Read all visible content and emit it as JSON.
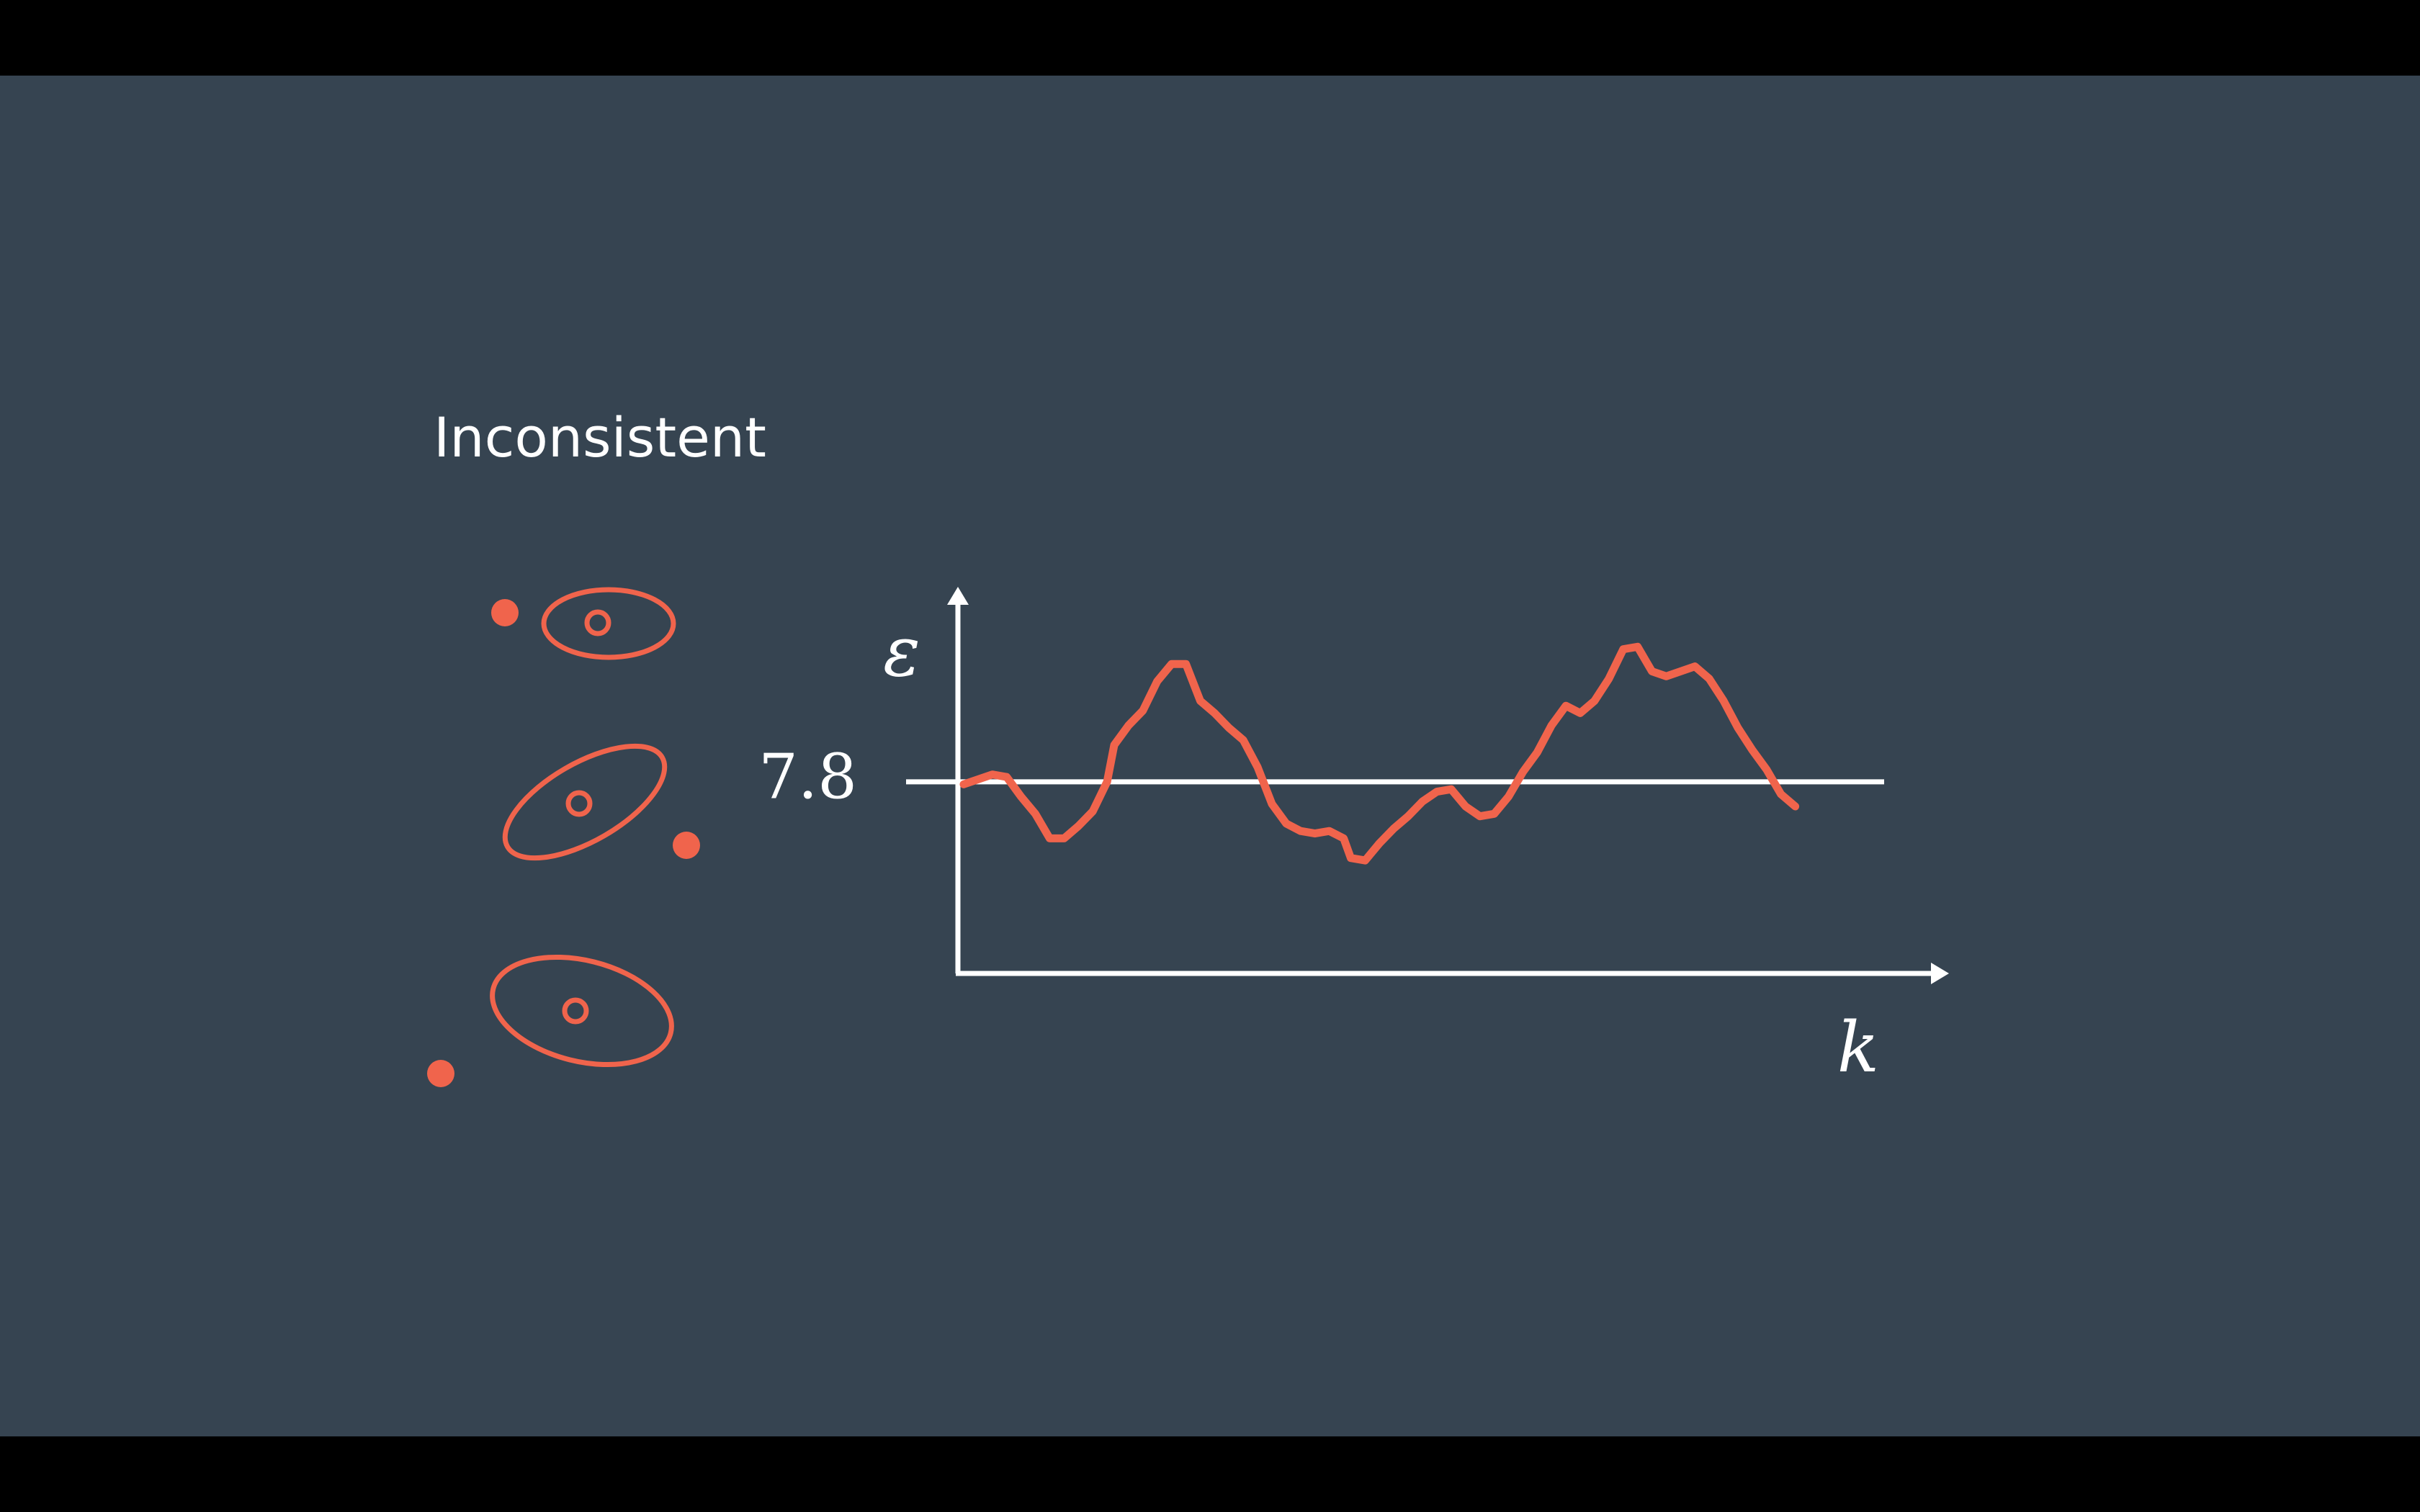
{
  "slide": {
    "title": "Inconsistent",
    "colors": {
      "background": "#364451",
      "accent": "#f0644c",
      "axis": "#ffffff",
      "letterbox": "#000000"
    }
  },
  "legend_glyphs": [
    {
      "name": "measurement-inside-ellipse"
    },
    {
      "name": "measurement-outside-ellipse-tilted"
    },
    {
      "name": "measurement-far-outside-ellipse"
    }
  ],
  "chart_data": {
    "type": "line",
    "ylabel": "ε",
    "xlabel": "k",
    "threshold": {
      "value": 7.8,
      "label": "7.8"
    },
    "ylim": [
      0,
      18
    ],
    "xlim": [
      0,
      130
    ],
    "series": [
      {
        "values": [
          [
            0,
            7.7
          ],
          [
            4,
            8.1
          ],
          [
            6,
            8.0
          ],
          [
            8,
            7.2
          ],
          [
            10,
            6.5
          ],
          [
            12,
            5.5
          ],
          [
            14,
            5.5
          ],
          [
            16,
            6.0
          ],
          [
            18,
            6.6
          ],
          [
            20,
            7.8
          ],
          [
            21,
            9.3
          ],
          [
            23,
            10.1
          ],
          [
            25,
            10.7
          ],
          [
            27,
            11.9
          ],
          [
            29,
            12.6
          ],
          [
            31,
            12.6
          ],
          [
            33,
            11.1
          ],
          [
            35,
            10.6
          ],
          [
            37,
            10.0
          ],
          [
            39,
            9.5
          ],
          [
            41,
            8.4
          ],
          [
            43,
            6.9
          ],
          [
            45,
            6.1
          ],
          [
            47,
            5.8
          ],
          [
            49,
            5.7
          ],
          [
            51,
            5.8
          ],
          [
            53,
            5.5
          ],
          [
            54,
            4.7
          ],
          [
            56,
            4.6
          ],
          [
            58,
            5.3
          ],
          [
            60,
            5.9
          ],
          [
            62,
            6.4
          ],
          [
            64,
            7.0
          ],
          [
            66,
            7.4
          ],
          [
            68,
            7.5
          ],
          [
            70,
            6.8
          ],
          [
            72,
            6.4
          ],
          [
            74,
            6.5
          ],
          [
            76,
            7.2
          ],
          [
            78,
            8.2
          ],
          [
            80,
            9.0
          ],
          [
            82,
            10.1
          ],
          [
            84,
            10.9
          ],
          [
            86,
            10.6
          ],
          [
            88,
            11.1
          ],
          [
            90,
            12.0
          ],
          [
            92,
            13.2
          ],
          [
            94,
            13.3
          ],
          [
            96,
            12.3
          ],
          [
            98,
            12.1
          ],
          [
            100,
            12.3
          ],
          [
            102,
            12.5
          ],
          [
            104,
            12.0
          ],
          [
            106,
            11.1
          ],
          [
            108,
            10.0
          ],
          [
            110,
            9.1
          ],
          [
            112,
            8.3
          ],
          [
            114,
            7.3
          ],
          [
            116,
            6.8
          ]
        ]
      }
    ]
  }
}
